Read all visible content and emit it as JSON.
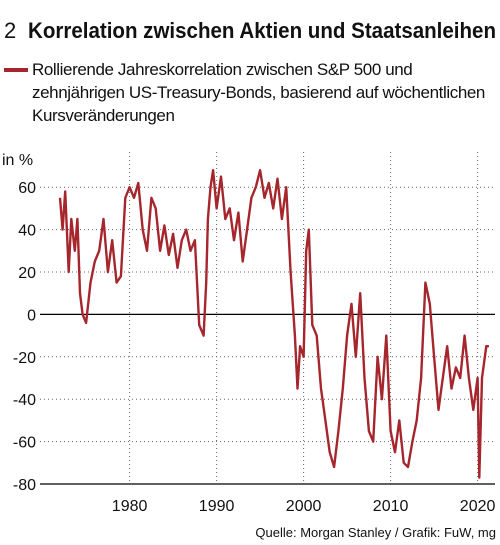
{
  "chart_data": {
    "type": "line",
    "figure_number": "2",
    "title": "Korrelation zwischen Aktien und Staatsanleihen",
    "y_label": "in %",
    "source": "Quelle: Morgan Stanley / Grafik: FuW, mg",
    "xlim": [
      1969.7,
      2022
    ],
    "ylim": [
      -80,
      70
    ],
    "xticks": [
      1980,
      1990,
      2000,
      2010,
      2020
    ],
    "yticks": [
      60,
      40,
      20,
      0,
      -20,
      -40,
      -60,
      -80
    ],
    "grid": true,
    "x": [
      1972.0,
      1972.3,
      1972.6,
      1973.0,
      1973.3,
      1973.7,
      1974.0,
      1974.3,
      1974.6,
      1975.0,
      1975.5,
      1976.0,
      1976.5,
      1977.0,
      1977.5,
      1978.0,
      1978.5,
      1979.0,
      1979.5,
      1980.0,
      1980.5,
      1981.0,
      1981.5,
      1982.0,
      1982.5,
      1983.0,
      1983.5,
      1984.0,
      1984.5,
      1985.0,
      1985.5,
      1986.0,
      1986.5,
      1987.0,
      1987.5,
      1988.0,
      1988.5,
      1988.8,
      1989.0,
      1989.3,
      1989.6,
      1990.0,
      1990.5,
      1991.0,
      1991.5,
      1992.0,
      1992.5,
      1993.0,
      1993.5,
      1994.0,
      1994.5,
      1995.0,
      1995.5,
      1996.0,
      1996.5,
      1997.0,
      1997.5,
      1998.0,
      1998.5,
      1999.0,
      1999.3,
      1999.6,
      2000.0,
      2000.3,
      2000.6,
      2001.0,
      2001.5,
      2002.0,
      2002.5,
      2003.0,
      2003.5,
      2004.0,
      2004.5,
      2005.0,
      2005.5,
      2006.0,
      2006.5,
      2007.0,
      2007.5,
      2008.0,
      2008.5,
      2009.0,
      2009.5,
      2010.0,
      2010.5,
      2011.0,
      2011.5,
      2012.0,
      2012.5,
      2013.0,
      2013.5,
      2014.0,
      2014.5,
      2015.0,
      2015.5,
      2016.0,
      2016.5,
      2017.0,
      2017.5,
      2018.0,
      2018.5,
      2019.0,
      2019.5,
      2020.0,
      2020.2,
      2020.5,
      2021.0,
      2021.3
    ],
    "series": [
      {
        "name": "Rollierende Jahreskorrelation zwischen S&P 500 und zehnjährigen US-Treasury-Bonds, basierend auf wöchentlichen Kursveränderungen",
        "color": "#a5262c",
        "values": [
          55,
          40,
          58,
          20,
          45,
          30,
          45,
          10,
          0,
          -4,
          15,
          25,
          30,
          45,
          20,
          35,
          15,
          18,
          55,
          60,
          55,
          62,
          40,
          30,
          55,
          50,
          30,
          42,
          28,
          38,
          22,
          35,
          40,
          30,
          35,
          -5,
          -10,
          15,
          45,
          60,
          68,
          50,
          65,
          45,
          50,
          35,
          48,
          25,
          40,
          55,
          60,
          68,
          55,
          62,
          50,
          64,
          45,
          60,
          20,
          -10,
          -35,
          -15,
          -20,
          30,
          40,
          -5,
          -10,
          -35,
          -50,
          -65,
          -72,
          -55,
          -35,
          -10,
          5,
          -20,
          10,
          -30,
          -55,
          -60,
          -20,
          -40,
          -10,
          -55,
          -65,
          -50,
          -70,
          -72,
          -60,
          -50,
          -30,
          15,
          5,
          -20,
          -45,
          -30,
          -15,
          -35,
          -25,
          -30,
          -10,
          -30,
          -45,
          -30,
          -77,
          -30,
          -15,
          -15
        ]
      }
    ]
  }
}
